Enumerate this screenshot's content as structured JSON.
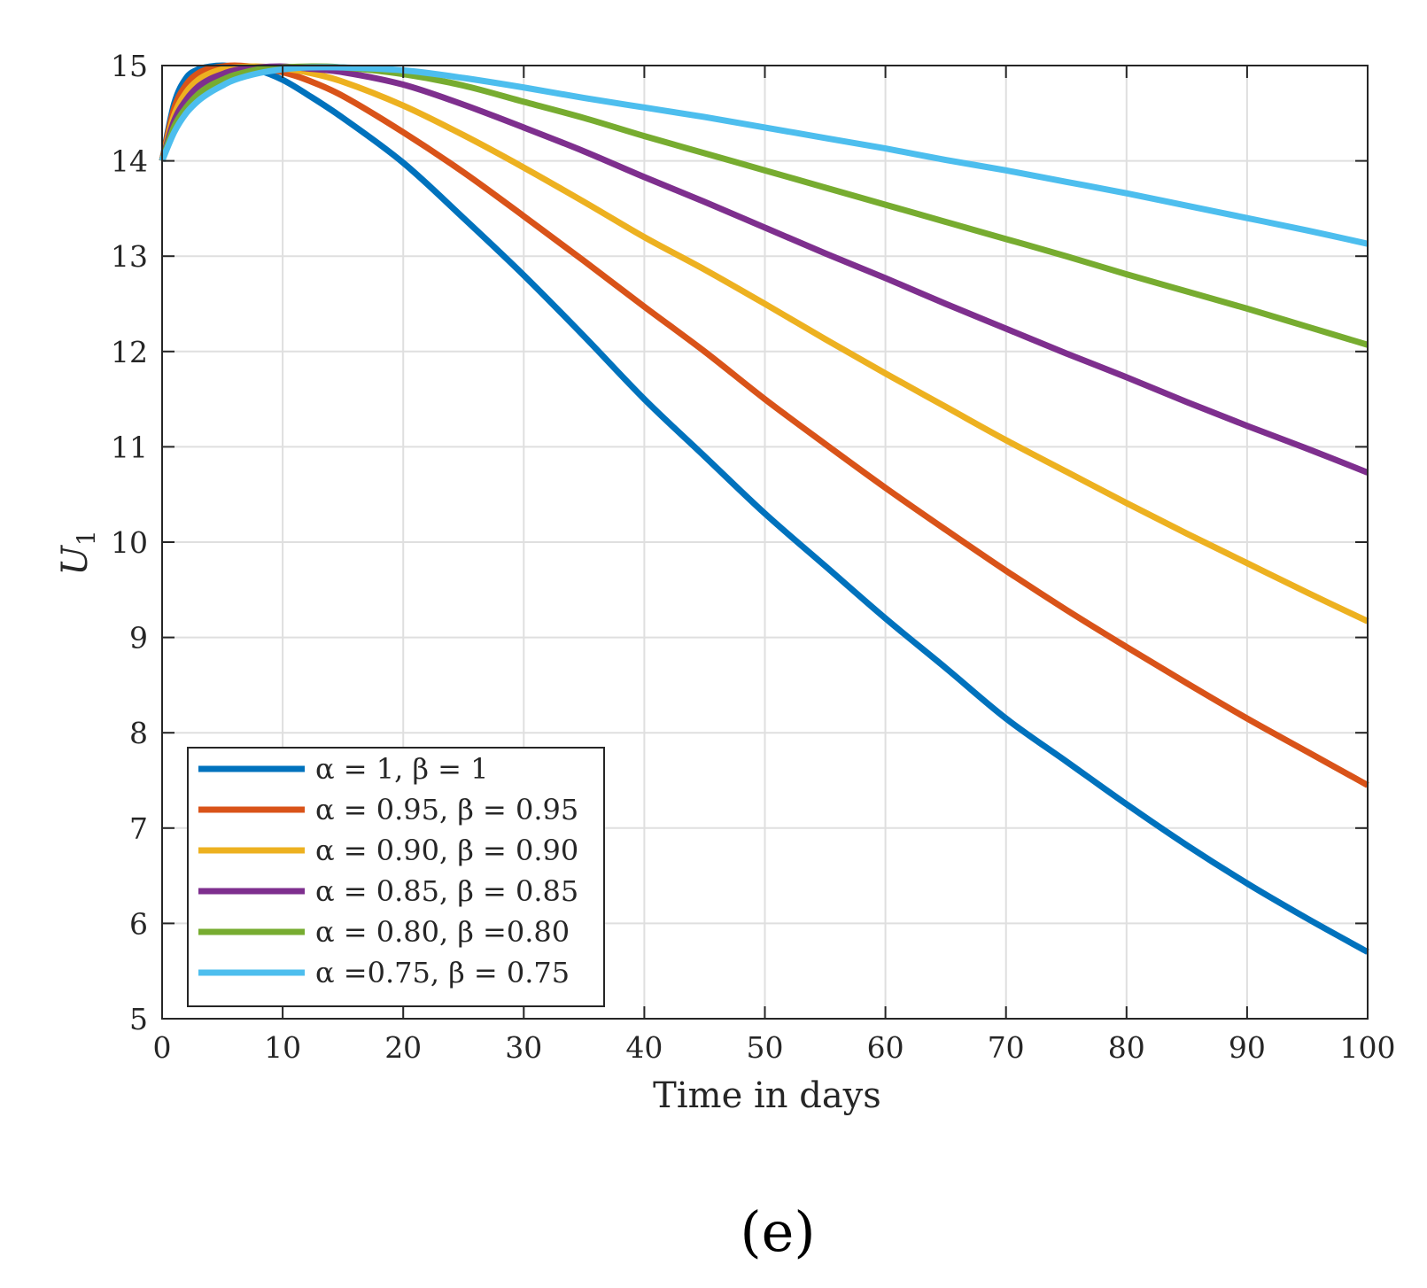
{
  "chart_data": {
    "type": "line",
    "panel_label": "(e)",
    "xlabel": "Time in days",
    "ylabel_main": "U",
    "ylabel_sub": "1",
    "xlim": [
      0,
      100
    ],
    "ylim": [
      5,
      15
    ],
    "xticks": [
      0,
      10,
      20,
      30,
      40,
      50,
      60,
      70,
      80,
      90,
      100
    ],
    "yticks": [
      5,
      6,
      7,
      8,
      9,
      10,
      11,
      12,
      13,
      14,
      15
    ],
    "grid": true,
    "legend_position": "bottom-left",
    "x": [
      0,
      1,
      2,
      3,
      4,
      5,
      6,
      8,
      10,
      12,
      15,
      20,
      25,
      30,
      35,
      40,
      45,
      50,
      55,
      60,
      65,
      70,
      75,
      80,
      85,
      90,
      95,
      100
    ],
    "series": [
      {
        "name": "α = 1, β = 1",
        "color": "#0072BD",
        "values": [
          14.0,
          14.6,
          14.87,
          14.96,
          14.99,
          15.0,
          14.99,
          14.95,
          14.85,
          14.7,
          14.45,
          13.98,
          13.4,
          12.8,
          12.16,
          11.5,
          10.9,
          10.3,
          9.75,
          9.2,
          8.68,
          8.15,
          7.7,
          7.25,
          6.82,
          6.42,
          6.05,
          5.7
        ]
      },
      {
        "name": "α = 0.95, β = 0.95",
        "color": "#D95319",
        "values": [
          14.0,
          14.55,
          14.8,
          14.92,
          14.97,
          14.99,
          15.0,
          14.98,
          14.93,
          14.85,
          14.68,
          14.3,
          13.88,
          13.42,
          12.95,
          12.47,
          12.0,
          11.5,
          11.03,
          10.57,
          10.13,
          9.7,
          9.29,
          8.9,
          8.52,
          8.15,
          7.8,
          7.45
        ]
      },
      {
        "name": "α = 0.90, β = 0.90",
        "color": "#EDB120",
        "values": [
          14.0,
          14.48,
          14.72,
          14.85,
          14.92,
          14.96,
          14.98,
          14.99,
          14.97,
          14.93,
          14.83,
          14.58,
          14.27,
          13.93,
          13.57,
          13.2,
          12.86,
          12.5,
          12.13,
          11.77,
          11.42,
          11.07,
          10.74,
          10.41,
          10.09,
          9.78,
          9.47,
          9.17
        ]
      },
      {
        "name": "α = 0.85, β = 0.85",
        "color": "#7E2F8E",
        "values": [
          14.0,
          14.42,
          14.64,
          14.78,
          14.86,
          14.91,
          14.95,
          14.98,
          14.99,
          14.97,
          14.93,
          14.8,
          14.59,
          14.35,
          14.1,
          13.83,
          13.57,
          13.3,
          13.03,
          12.77,
          12.5,
          12.24,
          11.98,
          11.73,
          11.47,
          11.22,
          10.98,
          10.73
        ]
      },
      {
        "name": "α = 0.80, β =0.80",
        "color": "#77AC30",
        "values": [
          14.0,
          14.36,
          14.56,
          14.7,
          14.79,
          14.85,
          14.9,
          14.96,
          14.98,
          14.99,
          14.98,
          14.91,
          14.79,
          14.62,
          14.45,
          14.26,
          14.08,
          13.9,
          13.72,
          13.54,
          13.36,
          13.18,
          13.0,
          12.81,
          12.63,
          12.45,
          12.26,
          12.07
        ]
      },
      {
        "name": "α =0.75, β = 0.75",
        "color": "#4DBEEE",
        "values": [
          14.0,
          14.3,
          14.5,
          14.63,
          14.72,
          14.79,
          14.85,
          14.92,
          14.96,
          14.98,
          14.98,
          14.95,
          14.87,
          14.77,
          14.66,
          14.56,
          14.46,
          14.35,
          14.24,
          14.13,
          14.01,
          13.9,
          13.78,
          13.66,
          13.53,
          13.4,
          13.27,
          13.13
        ]
      }
    ]
  }
}
